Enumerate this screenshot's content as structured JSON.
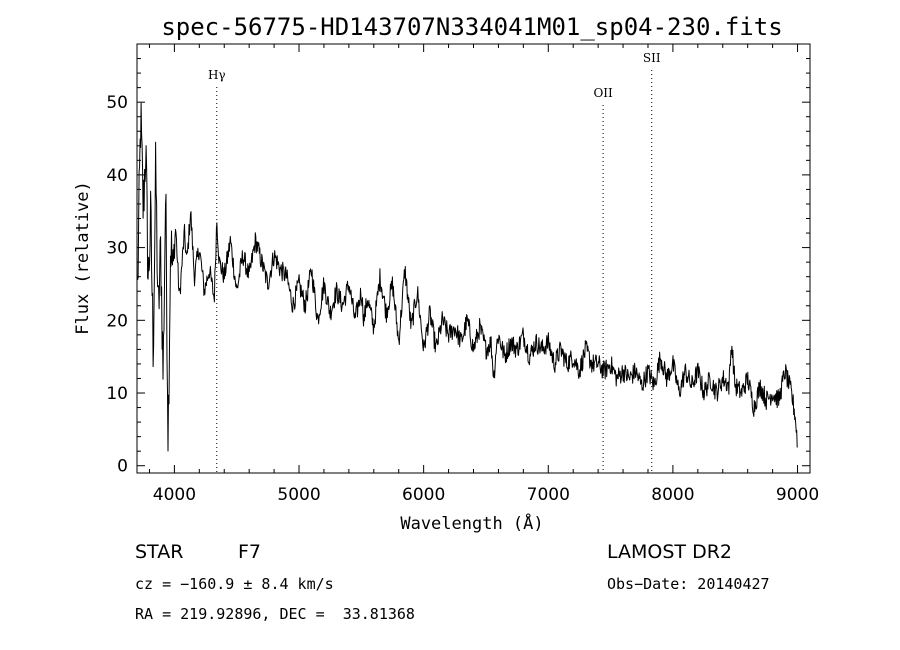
{
  "chart_data": {
    "type": "line",
    "title": "spec-56775-HD143707N334041M01_sp04-230.fits",
    "xlabel": "Wavelength (Å)",
    "ylabel": "Flux (relative)",
    "xlim": [
      3700,
      9100
    ],
    "ylim": [
      -1,
      58
    ],
    "xticks": [
      4000,
      5000,
      6000,
      7000,
      8000,
      9000
    ],
    "yticks": [
      0,
      10,
      20,
      30,
      40,
      50
    ],
    "grid": false,
    "line_color": "#000000",
    "lines": [
      {
        "label": "Hγ",
        "x": 4340
      },
      {
        "label": "OII",
        "x": 7440
      },
      {
        "label": "SII",
        "x": 7830
      }
    ],
    "series": [
      {
        "x": [
          3705,
          3730,
          3750,
          3770,
          3790,
          3810,
          3830,
          3850,
          3870,
          3890,
          3910,
          3930,
          3950,
          3970,
          3990,
          4010,
          4040,
          4080,
          4100,
          4130,
          4160,
          4200,
          4240,
          4280,
          4320,
          4340,
          4360,
          4400,
          4450,
          4500,
          4550,
          4600,
          4650,
          4700,
          4750,
          4800,
          4850,
          4900,
          4950,
          5000,
          5050,
          5100,
          5150,
          5200,
          5250,
          5300,
          5350,
          5400,
          5450,
          5500,
          5520,
          5550,
          5600,
          5650,
          5700,
          5750,
          5800,
          5850,
          5900,
          5950,
          6000,
          6050,
          6100,
          6150,
          6200,
          6250,
          6300,
          6350,
          6400,
          6450,
          6500,
          6540,
          6563,
          6580,
          6600,
          6650,
          6700,
          6750,
          6800,
          6850,
          6900,
          6950,
          7000,
          7050,
          7100,
          7150,
          7200,
          7250,
          7300,
          7350,
          7400,
          7450,
          7500,
          7550,
          7600,
          7650,
          7700,
          7750,
          7800,
          7850,
          7900,
          7950,
          8000,
          8050,
          8100,
          8150,
          8200,
          8250,
          8300,
          8350,
          8400,
          8450,
          8470,
          8500,
          8550,
          8600,
          8650,
          8700,
          8750,
          8800,
          8850,
          8900,
          8950,
          8980,
          9000
        ],
        "values": [
          24,
          48,
          35,
          44,
          25,
          34,
          16,
          41,
          20,
          30,
          12,
          38,
          4,
          31,
          26,
          33,
          23,
          32,
          28,
          35,
          26,
          30,
          24,
          27,
          23,
          34,
          28,
          26,
          31,
          24,
          29,
          26,
          31,
          28,
          25,
          29,
          27,
          26,
          22,
          25,
          22,
          27,
          20,
          25,
          21,
          24,
          22,
          25,
          20,
          24,
          20,
          23,
          19,
          26,
          21,
          25,
          17,
          27,
          19,
          24,
          16,
          21,
          16,
          20,
          18,
          19,
          17,
          20,
          16,
          19,
          16,
          17,
          12,
          16,
          18,
          15,
          17,
          16,
          18,
          15,
          17,
          16,
          17,
          14,
          16,
          14,
          15,
          13,
          16,
          14,
          14,
          13,
          14,
          12,
          13,
          12,
          13,
          11,
          13,
          11,
          15,
          12,
          14,
          10,
          13,
          11,
          13,
          10,
          12,
          10,
          12,
          11,
          17,
          11,
          10,
          12,
          8,
          11,
          9,
          10,
          9,
          13,
          10,
          7,
          3
        ]
      }
    ]
  },
  "footer": {
    "object_type": "STAR",
    "subclass": "F7",
    "survey": "LAMOST DR2",
    "cz": "cz = −160.9 ± 8.4 km/s",
    "obs_date": "Obs−Date: 20140427",
    "coords": "RA = 219.92896, DEC =  33.81368"
  }
}
